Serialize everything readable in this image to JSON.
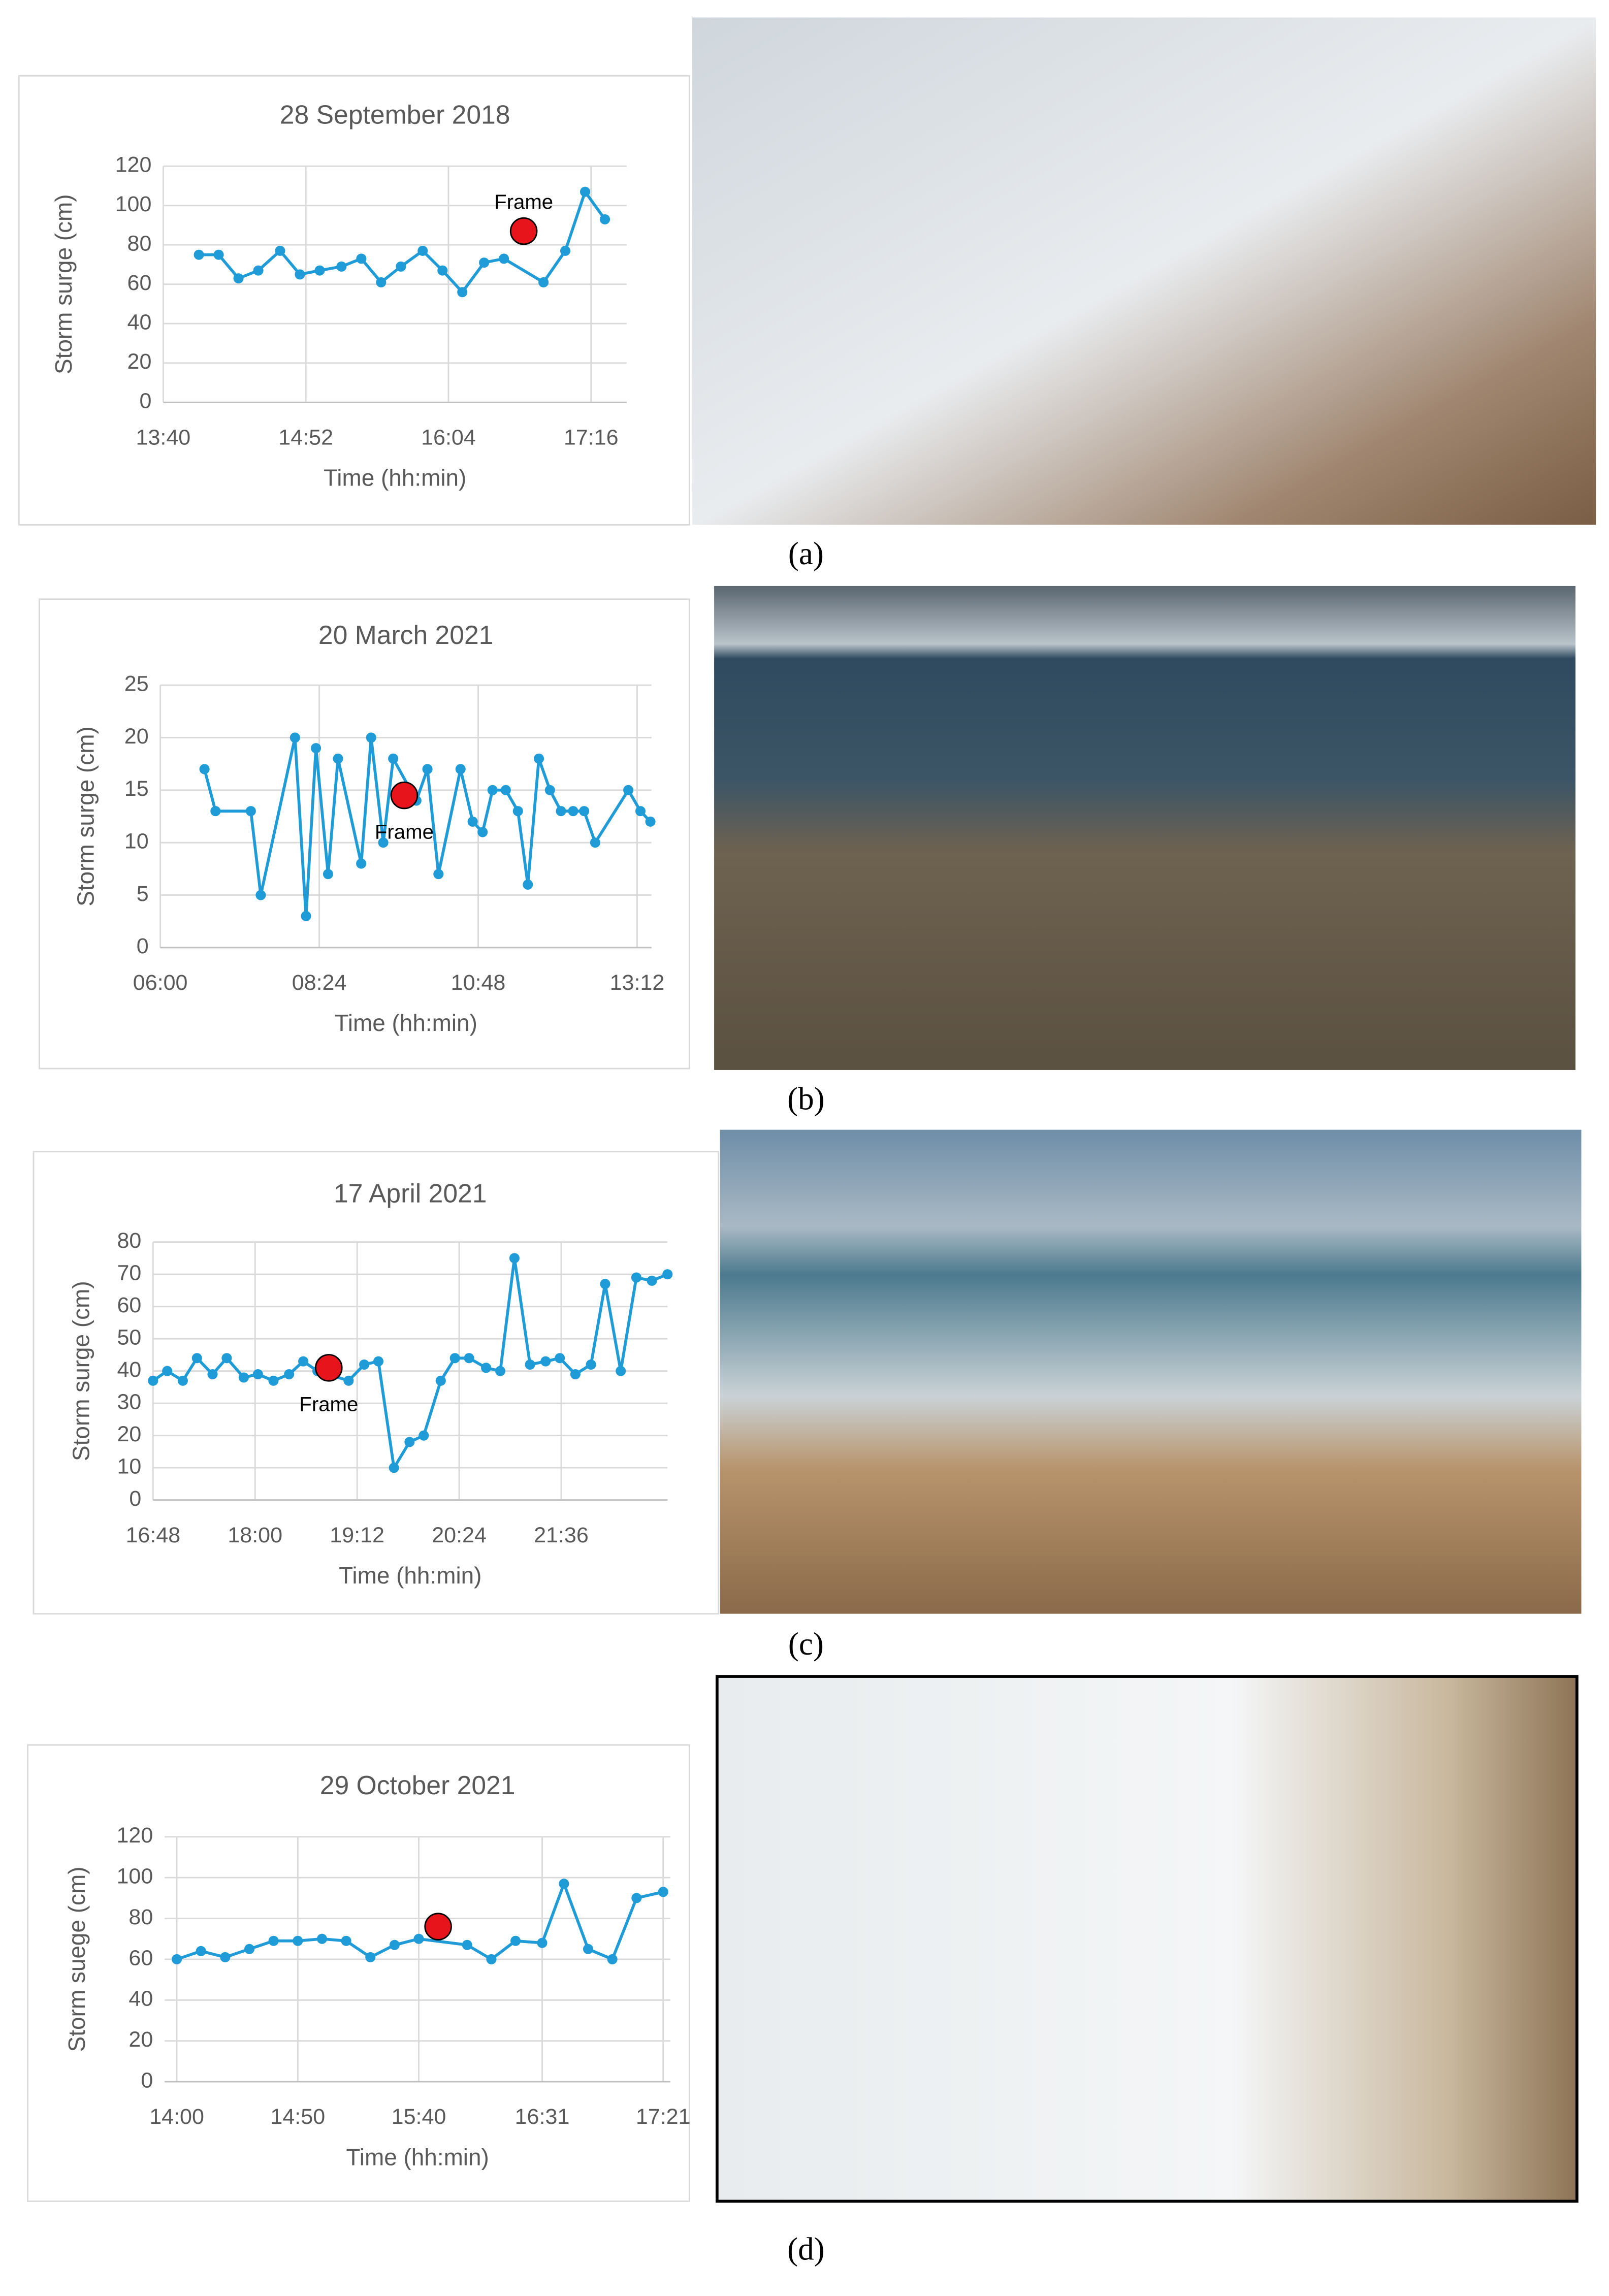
{
  "chart_data": [
    {
      "type": "line",
      "title": "28 September 2018",
      "caption": "(a)",
      "x_label": "Time (hh:min)",
      "y_label": "Storm surge (cm)",
      "color": "#1f9bd7",
      "grid": true,
      "xlim": [
        820,
        1054
      ],
      "xticks": [
        {
          "value": 820,
          "label": "13:40"
        },
        {
          "value": 892,
          "label": "14:52"
        },
        {
          "value": 964,
          "label": "16:04"
        },
        {
          "value": 1036,
          "label": "17:16"
        }
      ],
      "ylim": [
        0,
        120
      ],
      "yticks": [
        0,
        20,
        40,
        60,
        80,
        100,
        120
      ],
      "x": [
        838,
        848,
        858,
        868,
        879,
        889,
        899,
        910,
        920,
        930,
        940,
        951,
        961,
        971,
        982,
        992,
        1012,
        1023,
        1033,
        1043
      ],
      "values": [
        75,
        75,
        63,
        67,
        77,
        65,
        67,
        69,
        73,
        61,
        69,
        77,
        67,
        56,
        71,
        73,
        61,
        77,
        107,
        93
      ],
      "frame": {
        "x": 1002,
        "y": 87,
        "label": "Frame"
      },
      "frame_label_position": "above"
    },
    {
      "type": "line",
      "title": "20 March 2021",
      "caption": "(b)",
      "x_label": "Time (hh:min)",
      "y_label": "Storm surge (cm)",
      "color": "#1f9bd7",
      "grid": true,
      "xlim": [
        360,
        805
      ],
      "xticks": [
        {
          "value": 360,
          "label": "06:00"
        },
        {
          "value": 504,
          "label": "08:24"
        },
        {
          "value": 648,
          "label": "10:48"
        },
        {
          "value": 792,
          "label": "13:12"
        }
      ],
      "ylim": [
        0,
        25
      ],
      "yticks": [
        0,
        5,
        10,
        15,
        20,
        25
      ],
      "x": [
        400,
        410,
        442,
        451,
        482,
        492,
        501,
        512,
        521,
        542,
        551,
        562,
        571,
        592,
        602,
        612,
        632,
        643,
        652,
        661,
        673,
        684,
        693,
        703,
        713,
        723,
        734,
        744,
        754,
        784,
        795,
        804
      ],
      "values": [
        17,
        13,
        13,
        5,
        20,
        3,
        19,
        7,
        18,
        8,
        20,
        10,
        18,
        14,
        17,
        7,
        17,
        12,
        11,
        15,
        15,
        13,
        6,
        18,
        15,
        13,
        13,
        13,
        10,
        15,
        13,
        12
      ],
      "frame": {
        "x": 581,
        "y": 14.5,
        "label": "Frame"
      },
      "frame_label_position": "below"
    },
    {
      "type": "line",
      "title": "17 April 2021",
      "caption": "(c)",
      "x_label": "Time (hh:min)",
      "y_label": "Storm surge (cm)",
      "color": "#1f9bd7",
      "grid": true,
      "xlim": [
        1008,
        1371
      ],
      "xticks": [
        {
          "value": 1008,
          "label": "16:48"
        },
        {
          "value": 1080,
          "label": "18:00"
        },
        {
          "value": 1152,
          "label": "19:12"
        },
        {
          "value": 1224,
          "label": "20:24"
        },
        {
          "value": 1296,
          "label": "21:36"
        }
      ],
      "ylim": [
        0,
        80
      ],
      "yticks": [
        0,
        10,
        20,
        30,
        40,
        50,
        60,
        70,
        80
      ],
      "x": [
        1008,
        1018,
        1029,
        1039,
        1050,
        1060,
        1072,
        1082,
        1093,
        1104,
        1114,
        1124,
        1146,
        1157,
        1167,
        1178,
        1189,
        1199,
        1211,
        1221,
        1231,
        1243,
        1253,
        1263,
        1274,
        1285,
        1295,
        1306,
        1317,
        1327,
        1338,
        1349,
        1360,
        1371
      ],
      "values": [
        37,
        40,
        37,
        44,
        39,
        44,
        38,
        39,
        37,
        39,
        43,
        40,
        37,
        42,
        43,
        10,
        18,
        20,
        37,
        44,
        44,
        41,
        40,
        75,
        42,
        43,
        44,
        39,
        42,
        67,
        40,
        69,
        68,
        70
      ],
      "frame": {
        "x": 1132,
        "y": 41,
        "label": "Frame"
      },
      "frame_label_position": "below"
    },
    {
      "type": "line",
      "title": "29 October 2021",
      "caption": "(d)",
      "x_label": "Time (hh:min)",
      "y_label": "Storm suege (cm)",
      "color": "#1f9bd7",
      "grid": true,
      "xlim": [
        835,
        1044
      ],
      "xticks": [
        {
          "value": 840,
          "label": "14:00"
        },
        {
          "value": 890,
          "label": "14:50"
        },
        {
          "value": 940,
          "label": "15:40"
        },
        {
          "value": 991,
          "label": "16:31"
        },
        {
          "value": 1041,
          "label": "17:21"
        }
      ],
      "ylim": [
        0,
        120
      ],
      "yticks": [
        0,
        20,
        40,
        60,
        80,
        100,
        120
      ],
      "x": [
        840,
        850,
        860,
        870,
        880,
        890,
        900,
        910,
        920,
        930,
        940,
        960,
        970,
        980,
        991,
        1000,
        1010,
        1020,
        1030,
        1041
      ],
      "values": [
        60,
        64,
        61,
        65,
        69,
        69,
        70,
        69,
        61,
        67,
        70,
        67,
        60,
        69,
        68,
        97,
        65,
        60,
        90,
        93
      ],
      "frame": {
        "x": 948,
        "y": 76
      }
    }
  ]
}
